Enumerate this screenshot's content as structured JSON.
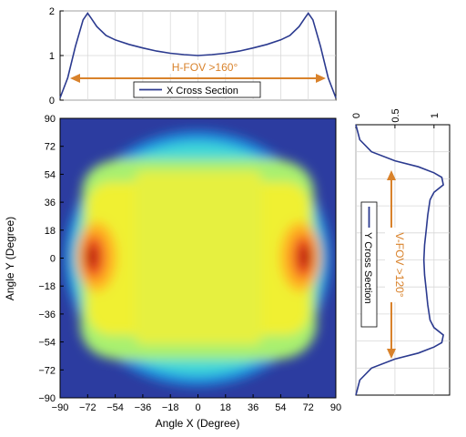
{
  "chart_data": [
    {
      "type": "line",
      "panel": "top",
      "xlim": [
        -90,
        90
      ],
      "ylim": [
        0,
        2
      ],
      "yticks": [
        "0",
        "1",
        "2"
      ],
      "grid": true,
      "legend": "bottom-center",
      "series": [
        {
          "name": "X Cross Section",
          "color": "#2b3a8f",
          "x": [
            -90,
            -85,
            -80,
            -75,
            -72,
            -70,
            -66,
            -60,
            -54,
            -45,
            -36,
            -27,
            -18,
            -9,
            0,
            9,
            18,
            27,
            36,
            45,
            54,
            60,
            66,
            70,
            72,
            75,
            80,
            85,
            90
          ],
          "y": [
            0.05,
            0.5,
            1.2,
            1.8,
            1.95,
            1.85,
            1.65,
            1.45,
            1.35,
            1.25,
            1.17,
            1.1,
            1.05,
            1.02,
            1.0,
            1.02,
            1.05,
            1.1,
            1.17,
            1.25,
            1.35,
            1.45,
            1.65,
            1.85,
            1.95,
            1.8,
            1.2,
            0.5,
            0.05
          ]
        }
      ],
      "annotation": "H-FOV >160°"
    },
    {
      "type": "heatmap",
      "panel": "main",
      "xlabel": "Angle X (Degree)",
      "ylabel": "Angle Y (Degree)",
      "xlim": [
        -90,
        90
      ],
      "ylim": [
        -90,
        90
      ],
      "xticks": [
        "−90",
        "−72",
        "−54",
        "−36",
        "−18",
        "0",
        "18",
        "36",
        "54",
        "72",
        "90"
      ],
      "yticks": [
        "90",
        "72",
        "54",
        "36",
        "18",
        "0",
        "−18",
        "−36",
        "−54",
        "−72",
        "−90"
      ],
      "colors": [
        "#2c3ca0",
        "#1e90e0",
        "#40d8d8",
        "#a8f070",
        "#f0f030",
        "#ffb020",
        "#f05020",
        "#b01010"
      ]
    },
    {
      "type": "line",
      "panel": "right",
      "xlim": [
        0,
        1.2
      ],
      "ylim": [
        -90,
        90
      ],
      "xticks": [
        "0",
        "0.5",
        "1"
      ],
      "grid": true,
      "legend": "left",
      "series": [
        {
          "name": "Y Cross Section",
          "color": "#2b3a8f",
          "y": [
            90,
            80,
            72,
            66,
            62,
            58,
            55,
            50,
            45,
            40,
            30,
            20,
            10,
            0,
            -10,
            -20,
            -30,
            -40,
            -45,
            -50,
            -55,
            -58,
            -62,
            -66,
            -72,
            -80,
            -90
          ],
          "x": [
            0.0,
            0.05,
            0.2,
            0.5,
            0.8,
            1.0,
            1.1,
            1.12,
            1.0,
            0.95,
            0.92,
            0.9,
            0.88,
            0.87,
            0.88,
            0.9,
            0.92,
            0.95,
            1.0,
            1.12,
            1.1,
            1.0,
            0.8,
            0.5,
            0.2,
            0.05,
            0.0
          ]
        }
      ],
      "annotation": "V-FOV >120°"
    }
  ]
}
